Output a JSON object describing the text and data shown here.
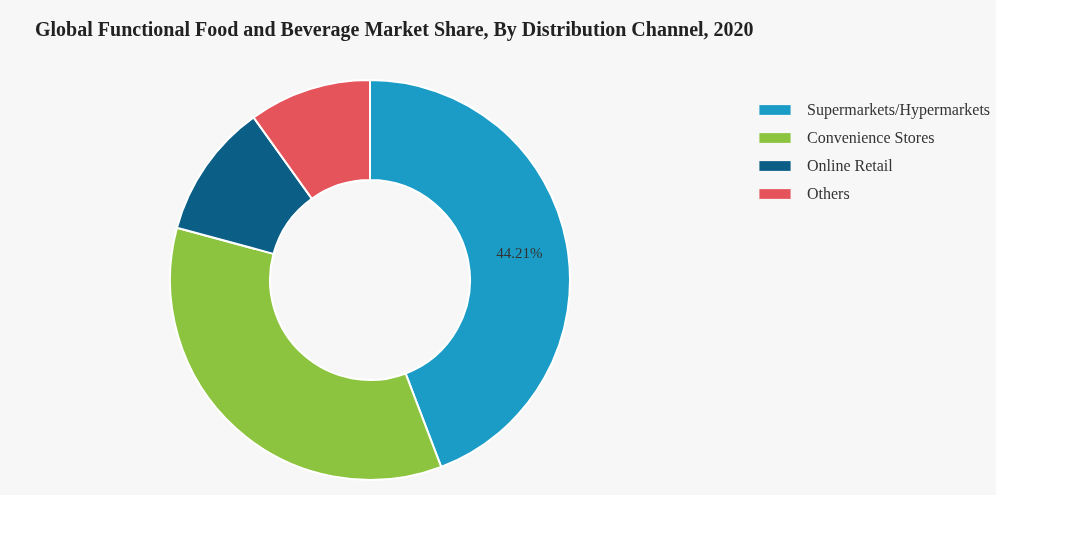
{
  "chart_data": {
    "type": "donut",
    "title": "Global Functional Food and Beverage Market Share, By Distribution Channel, 2020",
    "categories": [
      "Supermarkets/Hypermarkets",
      "Convenience Stores",
      "Online Retail",
      "Others"
    ],
    "values": [
      44.21,
      35.0,
      10.9,
      9.89
    ],
    "colors": [
      "#1b9cc6",
      "#8cc43f",
      "#0b5e86",
      "#e5545a"
    ],
    "value_labels": [
      "44.21%",
      null,
      null,
      null
    ],
    "legend": "top right"
  }
}
